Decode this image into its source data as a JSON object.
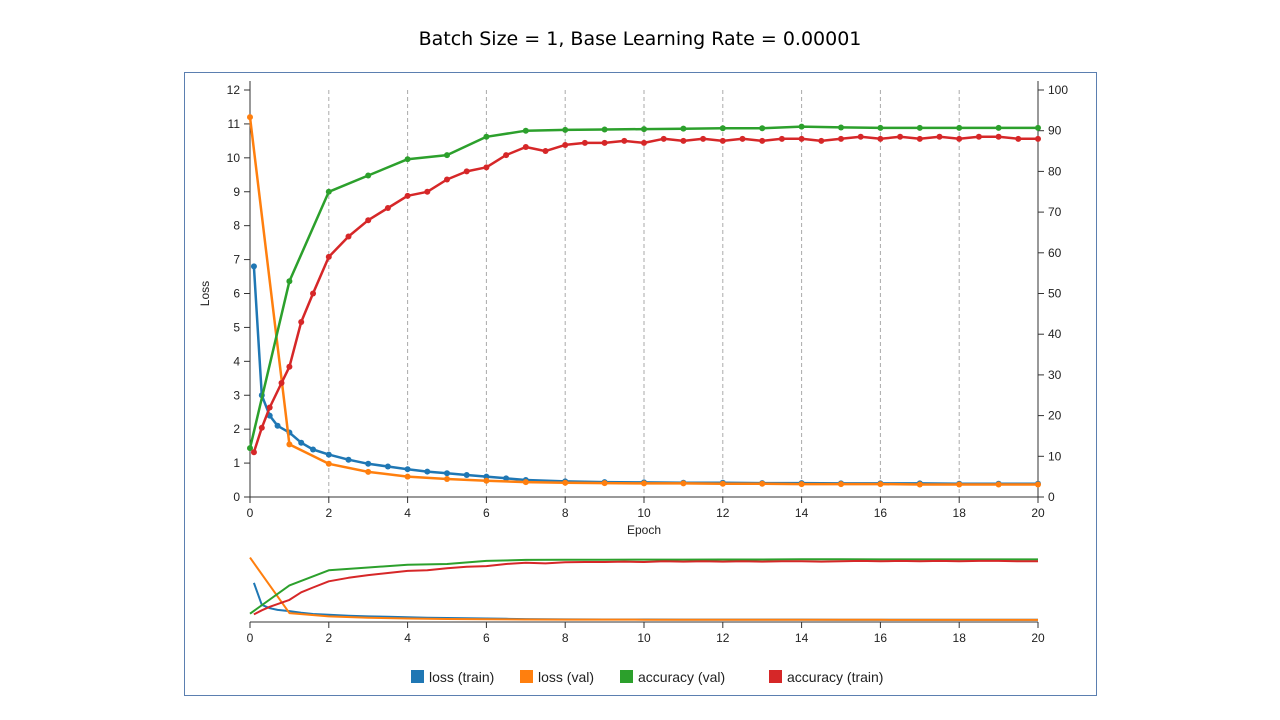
{
  "chart_data": {
    "type": "line",
    "title": "Batch Size = 1, Base Learning Rate = 0.00001",
    "xlabel": "Epoch",
    "ylabel_left": "Loss",
    "ylabel_right": "",
    "xlim": [
      0,
      20
    ],
    "ylim_left": [
      0,
      12
    ],
    "ylim_right": [
      0,
      100
    ],
    "x_ticks": [
      0,
      2,
      4,
      6,
      8,
      10,
      12,
      14,
      16,
      18,
      20
    ],
    "y_left_ticks": [
      0,
      1,
      2,
      3,
      4,
      5,
      6,
      7,
      8,
      9,
      10,
      11,
      12
    ],
    "y_right_ticks": [
      0,
      10,
      20,
      30,
      40,
      50,
      60,
      70,
      80,
      90,
      100
    ],
    "grid": "vertical dashed at even epochs",
    "legend_position": "bottom",
    "series": [
      {
        "name": "loss (train)",
        "axis": "left",
        "color": "#1f77b4",
        "x": [
          0.1,
          0.3,
          0.5,
          0.7,
          1.0,
          1.3,
          1.6,
          2.0,
          2.5,
          3.0,
          3.5,
          4.0,
          4.5,
          5.0,
          5.5,
          6.0,
          6.5,
          7.0,
          8.0,
          9.0,
          10.0,
          11.0,
          12.0,
          13.0,
          14.0,
          15.0,
          16.0,
          17.0,
          18.0,
          19.0,
          20.0
        ],
        "y": [
          6.8,
          3.0,
          2.4,
          2.1,
          1.9,
          1.6,
          1.4,
          1.25,
          1.1,
          0.98,
          0.9,
          0.82,
          0.75,
          0.7,
          0.65,
          0.6,
          0.55,
          0.5,
          0.46,
          0.44,
          0.43,
          0.42,
          0.42,
          0.41,
          0.41,
          0.4,
          0.4,
          0.4,
          0.39,
          0.39,
          0.39
        ]
      },
      {
        "name": "loss (val)",
        "axis": "left",
        "color": "#ff7f0e",
        "x": [
          0,
          1,
          2,
          3,
          4,
          5,
          6,
          7,
          8,
          9,
          10,
          11,
          12,
          13,
          14,
          15,
          16,
          17,
          18,
          19,
          20
        ],
        "y": [
          11.2,
          1.55,
          0.98,
          0.74,
          0.6,
          0.53,
          0.48,
          0.44,
          0.42,
          0.41,
          0.4,
          0.4,
          0.39,
          0.39,
          0.38,
          0.38,
          0.38,
          0.37,
          0.37,
          0.37,
          0.37
        ]
      },
      {
        "name": "accuracy (val)",
        "axis": "right",
        "color": "#2ca02c",
        "x": [
          0,
          1,
          2,
          3,
          4,
          5,
          6,
          7,
          8,
          9,
          10,
          11,
          12,
          13,
          14,
          15,
          16,
          17,
          18,
          19,
          20
        ],
        "y": [
          12,
          53,
          75,
          79,
          83,
          84,
          88.5,
          90,
          90.2,
          90.3,
          90.4,
          90.5,
          90.6,
          90.6,
          91,
          90.8,
          90.7,
          90.7,
          90.7,
          90.7,
          90.7
        ]
      },
      {
        "name": "accuracy (train)",
        "axis": "right",
        "color": "#d62728",
        "x": [
          0.1,
          0.3,
          0.5,
          0.8,
          1.0,
          1.3,
          1.6,
          2.0,
          2.5,
          3.0,
          3.5,
          4.0,
          4.5,
          5.0,
          5.5,
          6.0,
          6.5,
          7.0,
          7.5,
          8.0,
          8.5,
          9.0,
          9.5,
          10.0,
          10.5,
          11.0,
          11.5,
          12.0,
          12.5,
          13.0,
          13.5,
          14.0,
          14.5,
          15.0,
          15.5,
          16.0,
          16.5,
          17.0,
          17.5,
          18.0,
          18.5,
          19.0,
          19.5,
          20.0
        ],
        "y": [
          11,
          17,
          22,
          28,
          32,
          43,
          50,
          59,
          64,
          68,
          71,
          74,
          75,
          78,
          80,
          81,
          84,
          86,
          85,
          86.5,
          87,
          87,
          87.5,
          87,
          88,
          87.5,
          88,
          87.5,
          88,
          87.5,
          88,
          88,
          87.5,
          88,
          88.5,
          88,
          88.5,
          88,
          88.5,
          88,
          88.5,
          88.5,
          88,
          88
        ]
      }
    ]
  }
}
